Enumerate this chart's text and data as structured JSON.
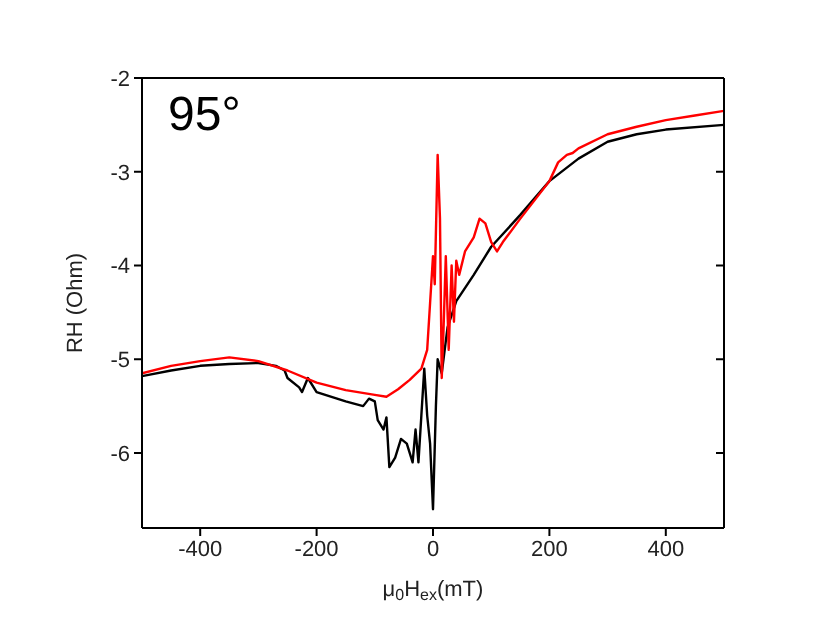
{
  "chart_data": {
    "type": "line",
    "xlabel": "μ$_{0}$H$_{ex}$(mT)",
    "ylabel": "RH (Ohm)",
    "annotations": [
      "95°"
    ],
    "xlim": [
      -500,
      500
    ],
    "xticks": [
      -400,
      -200,
      0,
      200,
      400
    ],
    "ylim": [
      -6.8,
      -2
    ],
    "yticks": [
      -6,
      -5,
      -4,
      -3,
      -2
    ],
    "grid": false,
    "marker": "none",
    "line_style": "solid",
    "series": [
      {
        "color": "#000000",
        "x": [
          -500,
          -450,
          -400,
          -350,
          -300,
          -270,
          -255,
          -250,
          -230,
          -225,
          -215,
          -200,
          -150,
          -120,
          -110,
          -100,
          -95,
          -85,
          -80,
          -75,
          -65,
          -55,
          -45,
          -35,
          -30,
          -25,
          -20,
          -15,
          -10,
          -5,
          0,
          5,
          8,
          15,
          25,
          40,
          70,
          100,
          150,
          200,
          250,
          300,
          350,
          400,
          500
        ],
        "values": [
          -5.18,
          -5.12,
          -5.07,
          -5.05,
          -5.04,
          -5.07,
          -5.12,
          -5.2,
          -5.3,
          -5.35,
          -5.2,
          -5.35,
          -5.45,
          -5.5,
          -5.42,
          -5.45,
          -5.65,
          -5.75,
          -5.62,
          -6.15,
          -6.05,
          -5.85,
          -5.9,
          -6.1,
          -5.75,
          -6.1,
          -5.6,
          -5.1,
          -5.6,
          -5.9,
          -6.6,
          -5.5,
          -5,
          -5.15,
          -4.66,
          -4.38,
          -4.1,
          -3.8,
          -3.46,
          -3.1,
          -2.86,
          -2.68,
          -2.6,
          -2.55,
          -2.5
        ]
      },
      {
        "color": "#ff0000",
        "x": [
          -500,
          -450,
          -400,
          -350,
          -300,
          -250,
          -200,
          -150,
          -100,
          -80,
          -60,
          -40,
          -20,
          -10,
          -5,
          0,
          3,
          8,
          12,
          15,
          18,
          22,
          27,
          32,
          36,
          40,
          45,
          55,
          70,
          80,
          90,
          100,
          110,
          120,
          150,
          200,
          215,
          230,
          240,
          250,
          300,
          350,
          400,
          450,
          500
        ],
        "values": [
          -5.15,
          -5.07,
          -5.02,
          -4.98,
          -5.02,
          -5.12,
          -5.25,
          -5.33,
          -5.38,
          -5.4,
          -5.32,
          -5.22,
          -5.1,
          -4.9,
          -4.4,
          -3.9,
          -4.2,
          -2.82,
          -3.5,
          -5.2,
          -4.7,
          -3.9,
          -4.9,
          -4,
          -4.6,
          -3.95,
          -4.1,
          -3.85,
          -3.7,
          -3.5,
          -3.55,
          -3.75,
          -3.85,
          -3.75,
          -3.5,
          -3.1,
          -2.9,
          -2.82,
          -2.8,
          -2.75,
          -2.6,
          -2.52,
          -2.45,
          -2.4,
          -2.35
        ]
      }
    ]
  }
}
